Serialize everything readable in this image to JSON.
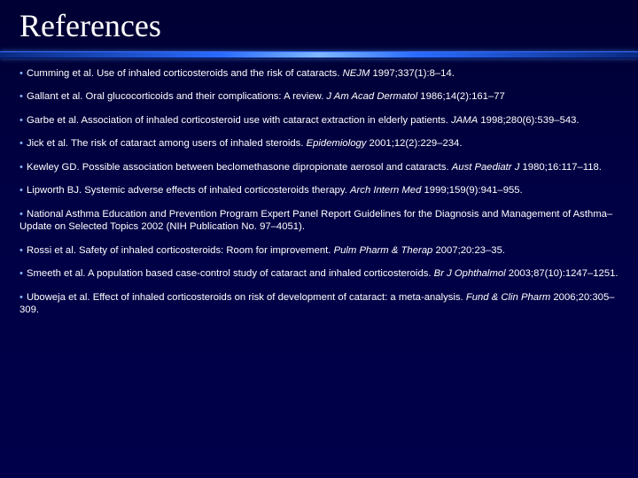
{
  "title": "References",
  "colors": {
    "background_top": "#000033",
    "background_bottom": "#00004a",
    "rule_gradient": [
      "#0a2a80",
      "#2a6cff",
      "#7fb8ff",
      "#2a6cff",
      "#0a2a80"
    ],
    "bullet_color": "#8bb4ff",
    "text_color": "#ffffff"
  },
  "typography": {
    "title_font": "Times New Roman",
    "title_fontsize": 36,
    "body_font": "Verdana",
    "body_fontsize": 11.3
  },
  "bullet_char": "•",
  "references": [
    {
      "text": "Cumming et al. Use of inhaled corticosteroids and the risk of cataracts. ",
      "journal": "NEJM",
      "cite": " 1997;337(1):8–14."
    },
    {
      "text": "Gallant et al. Oral glucocorticoids and their complications: A review. ",
      "journal": "J Am Acad Dermatol",
      "cite": " 1986;14(2):161–77"
    },
    {
      "text": "Garbe et al. Association of inhaled corticosteroid use with cataract extraction in elderly patients. ",
      "journal": "JAMA",
      "cite": " 1998;280(6):539–543."
    },
    {
      "text": "Jick et al. The risk of cataract among users of inhaled steroids. ",
      "journal": "Epidemiology",
      "cite": " 2001;12(2):229–234."
    },
    {
      "text": "Kewley GD. Possible association between beclomethasone dipropionate aerosol and cataracts. ",
      "journal": "Aust Paediatr J",
      "cite": " 1980;16:117–118."
    },
    {
      "text": "Lipworth BJ. Systemic adverse effects of inhaled corticosteroids therapy. ",
      "journal": "Arch Intern Med",
      "cite": " 1999;159(9):941–955."
    },
    {
      "text": "National Asthma Education and Prevention Program Expert Panel Report Guidelines for the Diagnosis and Management of Asthma– Update on Selected Topics 2002 (NIH Publication No. 97–4051).",
      "journal": "",
      "cite": ""
    },
    {
      "text": "Rossi et al. Safety of inhaled corticosteroids: Room for improvement. ",
      "journal": "Pulm Pharm & Therap",
      "cite": " 2007;20:23–35."
    },
    {
      "text": "Smeeth et al. A population based case-control study of cataract and inhaled corticosteroids. ",
      "journal": "Br J Ophthalmol",
      "cite": " 2003;87(10):1247–1251."
    },
    {
      "text": "Uboweja et al. Effect of inhaled corticosteroids on risk of development of cataract: a meta-analysis. ",
      "journal": "Fund & Clin Pharm",
      "cite": " 2006;20:305–309."
    }
  ]
}
